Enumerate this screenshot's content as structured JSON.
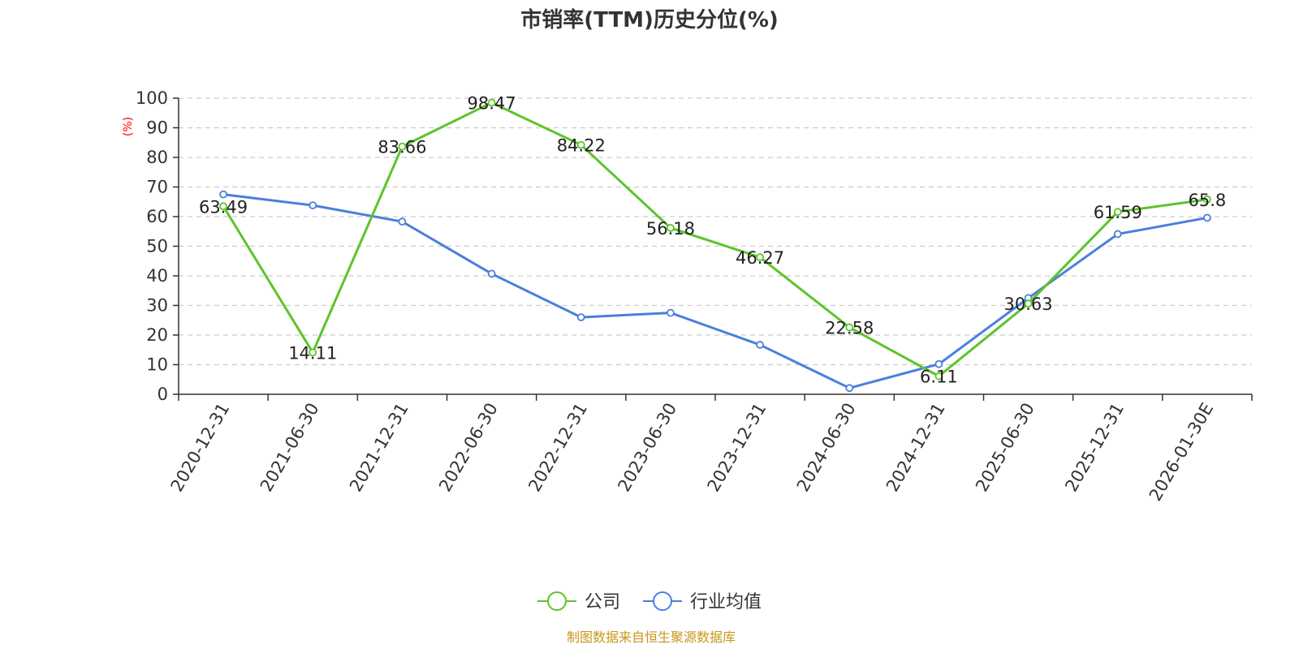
{
  "chart_data": {
    "type": "line",
    "title": "市销率(TTM)历史分位(%)",
    "ylabel": "(%)",
    "xlabel": "",
    "ylim": [
      0,
      100
    ],
    "yticks": [
      0,
      10,
      20,
      30,
      40,
      50,
      60,
      70,
      80,
      90,
      100
    ],
    "categories": [
      "2020-12-31",
      "2021-06-30",
      "2021-12-31",
      "2022-06-30",
      "2022-12-31",
      "2023-06-30",
      "2023-12-31",
      "2024-06-30",
      "2024-12-31",
      "2025-06-30",
      "2025-12-31",
      "2026-01-30E"
    ],
    "grid": true,
    "legend_position": "bottom",
    "series": [
      {
        "name": "公司",
        "color": "#5cc42a",
        "values": [
          63.49,
          14.11,
          83.66,
          98.47,
          84.22,
          56.18,
          46.27,
          22.58,
          6.11,
          30.63,
          61.59,
          65.8
        ],
        "labels": [
          "63.49",
          "14.11",
          "83.66",
          "98.47",
          "84.22",
          "56.18",
          "46.27",
          "22.58",
          "6.11",
          "30.63",
          "61.59",
          "65.8"
        ]
      },
      {
        "name": "行业均值",
        "color": "#4a7fdc",
        "values": [
          67.5,
          63.8,
          58.3,
          40.7,
          26.0,
          27.5,
          16.7,
          2.1,
          10.2,
          32.5,
          54.1,
          59.6
        ]
      }
    ],
    "source": "制图数据来自恒生聚源数据库"
  }
}
